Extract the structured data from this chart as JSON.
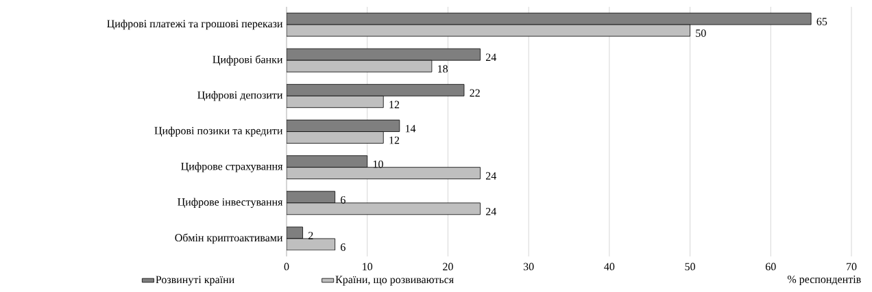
{
  "chart_data": {
    "type": "bar",
    "orientation": "horizontal",
    "categories": [
      "Цифрові платежі та грошові перекази",
      "Цифрові банки",
      "Цифрові депозити",
      "Цифрові позики та кредити",
      "Цифрове страхування",
      "Цифрове інвестування",
      "Обмін криптоактивами"
    ],
    "series": [
      {
        "name": "Розвинуті країни",
        "color": "#7f7f7f",
        "values": [
          65,
          24,
          22,
          14,
          10,
          6,
          2
        ]
      },
      {
        "name": "Країни, що розвиваються",
        "color": "#bfbfbf",
        "values": [
          50,
          18,
          12,
          12,
          24,
          24,
          6
        ]
      }
    ],
    "xlim": [
      0,
      70
    ],
    "xticks": [
      0,
      10,
      20,
      30,
      40,
      50,
      60,
      70
    ],
    "xlabel": "% респондентів",
    "grid": "x",
    "legend": "bottom",
    "data_labels": true
  }
}
